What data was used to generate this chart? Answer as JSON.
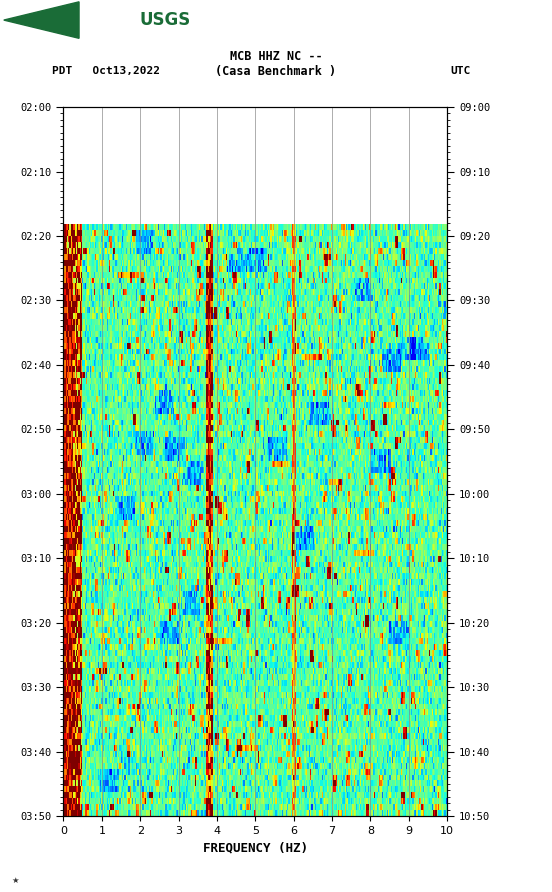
{
  "title_line1": "MCB HHZ NC --",
  "title_line2": "(Casa Benchmark )",
  "left_label": "PDT   Oct13,2022",
  "right_label": "UTC",
  "left_yticks": [
    "02:00",
    "02:10",
    "02:20",
    "02:30",
    "02:40",
    "02:50",
    "03:00",
    "03:10",
    "03:20",
    "03:30",
    "03:40",
    "03:50"
  ],
  "right_yticks": [
    "09:00",
    "09:10",
    "09:20",
    "09:30",
    "09:40",
    "09:50",
    "10:00",
    "10:10",
    "10:20",
    "10:30",
    "10:40",
    "10:50"
  ],
  "xticks": [
    0,
    1,
    2,
    3,
    4,
    5,
    6,
    7,
    8,
    9,
    10
  ],
  "xlabel": "FREQUENCY (HZ)",
  "freq_min": 0,
  "freq_max": 10,
  "n_time": 120,
  "n_freq": 300,
  "blank_rows": 20,
  "bg_color": "#ffffff",
  "usgs_green": "#1a6c37",
  "colormap": "jet",
  "noise_seed": 42,
  "vmin": 0.0,
  "vmax": 1.0,
  "base_level": 0.45,
  "low_freq_cols": 15,
  "hot_col1_freq": 3.8,
  "hot_col2_freq": 6.0
}
